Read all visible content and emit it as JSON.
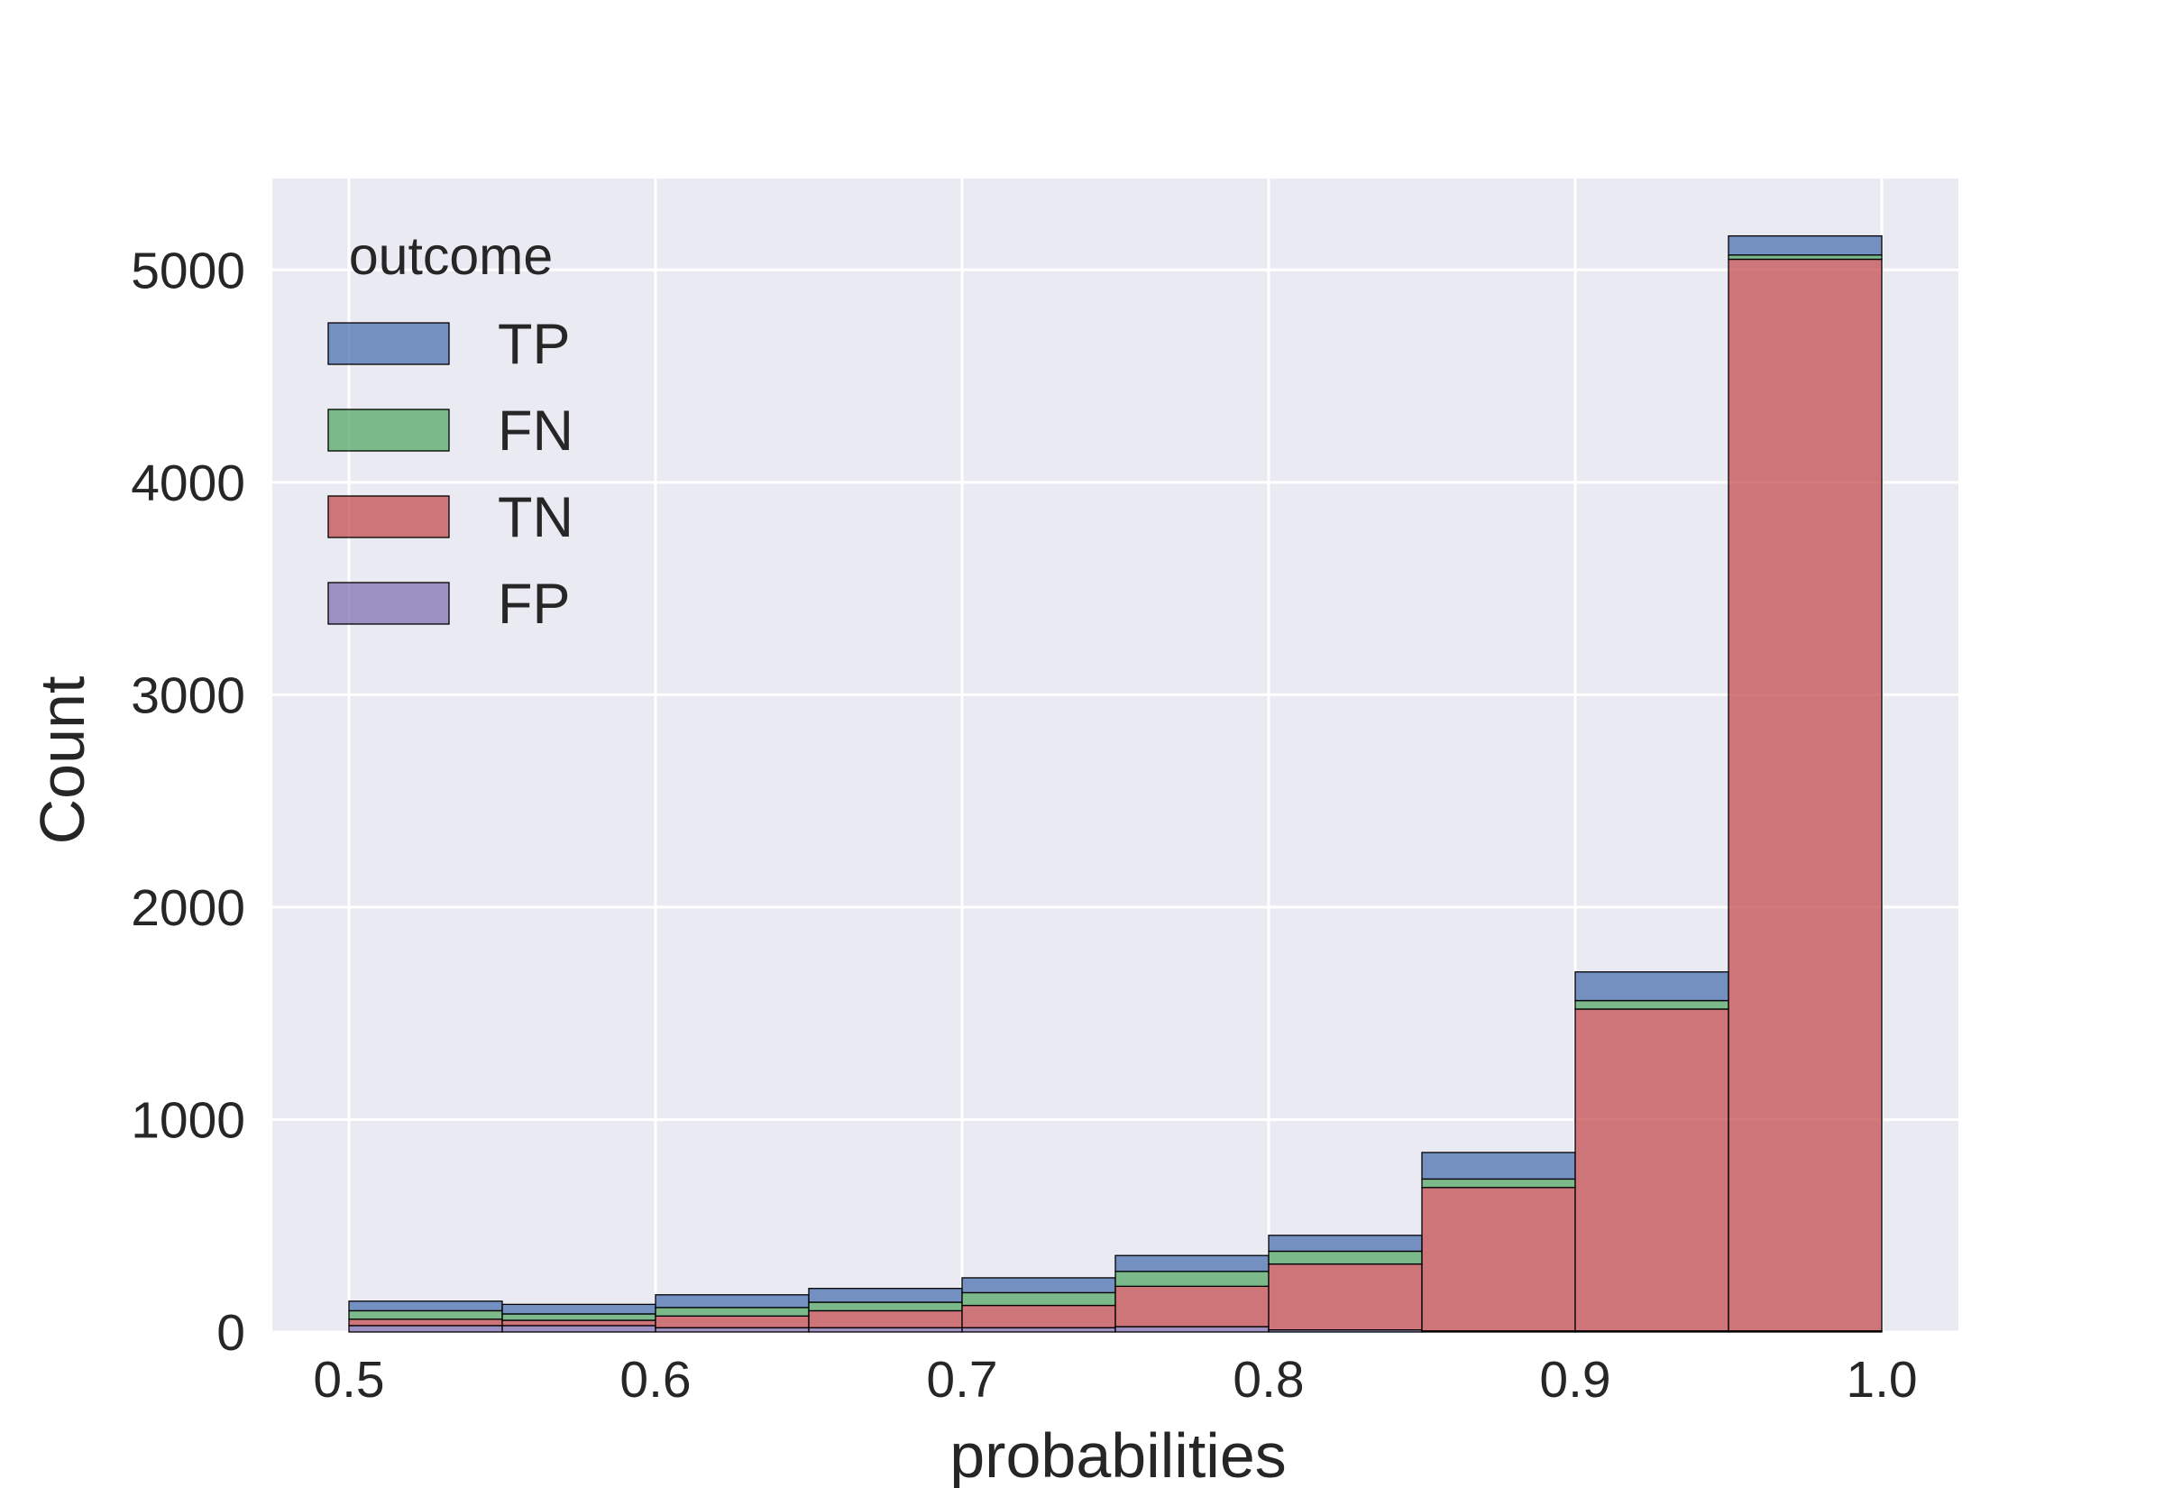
{
  "chart_data": {
    "type": "bar",
    "subtype": "stacked-histogram",
    "xlabel": "probabilities",
    "ylabel": "Count",
    "xlim": [
      0.475,
      1.025
    ],
    "ylim": [
      0,
      5430
    ],
    "x_ticks": [
      {
        "value": 0.5,
        "label": "0.5"
      },
      {
        "value": 0.6,
        "label": "0.6"
      },
      {
        "value": 0.7,
        "label": "0.7"
      },
      {
        "value": 0.8,
        "label": "0.8"
      },
      {
        "value": 0.9,
        "label": "0.9"
      },
      {
        "value": 1.0,
        "label": "1.0"
      }
    ],
    "y_ticks": [
      {
        "value": 0,
        "label": "0"
      },
      {
        "value": 1000,
        "label": "1000"
      },
      {
        "value": 2000,
        "label": "2000"
      },
      {
        "value": 3000,
        "label": "3000"
      },
      {
        "value": 4000,
        "label": "4000"
      },
      {
        "value": 5000,
        "label": "5000"
      }
    ],
    "bins": [
      [
        0.5,
        0.55
      ],
      [
        0.55,
        0.6
      ],
      [
        0.6,
        0.65
      ],
      [
        0.65,
        0.7
      ],
      [
        0.7,
        0.75
      ],
      [
        0.75,
        0.8
      ],
      [
        0.8,
        0.85
      ],
      [
        0.85,
        0.9
      ],
      [
        0.9,
        0.95
      ],
      [
        0.95,
        1.0
      ]
    ],
    "series": [
      {
        "name": "FP",
        "color": "#8172b3",
        "values": [
          30,
          30,
          20,
          20,
          20,
          25,
          10,
          5,
          5,
          5
        ]
      },
      {
        "name": "TN",
        "color": "#c44e52",
        "values": [
          30,
          25,
          55,
          80,
          105,
          190,
          310,
          675,
          1515,
          5045
        ]
      },
      {
        "name": "FN",
        "color": "#55a868",
        "values": [
          40,
          30,
          40,
          40,
          60,
          70,
          60,
          40,
          40,
          20
        ]
      },
      {
        "name": "TP",
        "color": "#4c72b0",
        "values": [
          45,
          45,
          60,
          65,
          70,
          75,
          75,
          125,
          135,
          90
        ]
      }
    ],
    "legend": {
      "title": "outcome",
      "position": "top-left",
      "order": [
        "TP",
        "FN",
        "TN",
        "FP"
      ]
    },
    "grid": true,
    "colors": {
      "plot_background": "#eaeaf2",
      "grid": "#ffffff",
      "bar_edge": "#000000",
      "text": "#262626"
    }
  }
}
